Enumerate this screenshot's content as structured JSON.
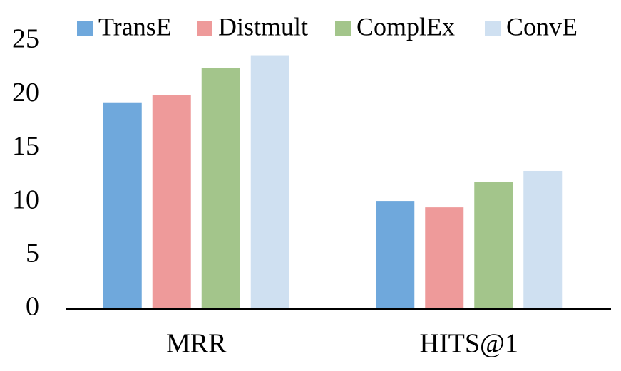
{
  "chart_data": {
    "type": "bar",
    "categories": [
      "MRR",
      "HITS@1"
    ],
    "series": [
      {
        "name": "TransE",
        "color": "#6fa8dc",
        "values": [
          19.3,
          10.1
        ]
      },
      {
        "name": "Distmult",
        "color": "#ee9a9a",
        "values": [
          20.0,
          9.5
        ]
      },
      {
        "name": "ComplEx",
        "color": "#a3c58b",
        "values": [
          22.5,
          11.9
        ]
      },
      {
        "name": "ConvE",
        "color": "#cfe0f1",
        "values": [
          23.7,
          12.9
        ]
      }
    ],
    "ylim": [
      0,
      25
    ],
    "yticks": [
      0,
      5,
      10,
      15,
      20,
      25
    ],
    "grid": false,
    "legend": "top"
  }
}
